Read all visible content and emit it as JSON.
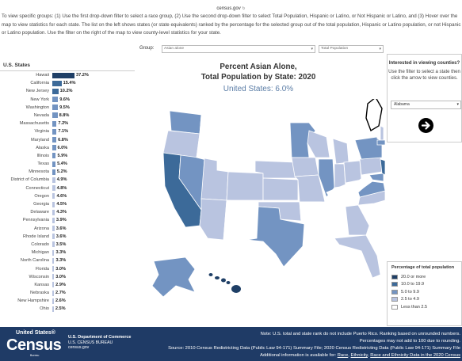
{
  "browser": {
    "url": "census.gov"
  },
  "instructions": "To view specific groups: (1) Use the first drop-down filter to select a race group, (2) Use the second drop-down filter to select Total Population, Hispanic or Latino, or Not Hispanic or Latino, and (3) Hover over the map to view statistics for each state. The list on the left shows states (or state equivalents) ranked by the percentage for the selected group out of the total population, Hispanic or Latino population, or not Hispanic or Latino population. Use the filter on the right of the map to view county-level statistics for your state.",
  "left_panel": {
    "header": "U.S. States",
    "states": [
      {
        "name": "Hawaii",
        "value": 37.2,
        "label": "37.2%"
      },
      {
        "name": "California",
        "value": 15.4,
        "label": "15.4%"
      },
      {
        "name": "New Jersey",
        "value": 10.2,
        "label": "10.2%"
      },
      {
        "name": "New York",
        "value": 9.6,
        "label": "9.6%"
      },
      {
        "name": "Washington",
        "value": 9.5,
        "label": "9.5%"
      },
      {
        "name": "Nevada",
        "value": 8.8,
        "label": "8.8%"
      },
      {
        "name": "Massachusetts",
        "value": 7.2,
        "label": "7.2%"
      },
      {
        "name": "Virginia",
        "value": 7.1,
        "label": "7.1%"
      },
      {
        "name": "Maryland",
        "value": 6.8,
        "label": "6.8%"
      },
      {
        "name": "Alaska",
        "value": 6.0,
        "label": "6.0%"
      },
      {
        "name": "Illinois",
        "value": 5.9,
        "label": "5.9%"
      },
      {
        "name": "Texas",
        "value": 5.4,
        "label": "5.4%"
      },
      {
        "name": "Minnesota",
        "value": 5.2,
        "label": "5.2%"
      },
      {
        "name": "District of Columbia",
        "value": 4.9,
        "label": "4.9%"
      },
      {
        "name": "Connecticut",
        "value": 4.8,
        "label": "4.8%"
      },
      {
        "name": "Oregon",
        "value": 4.6,
        "label": "4.6%"
      },
      {
        "name": "Georgia",
        "value": 4.5,
        "label": "4.5%"
      },
      {
        "name": "Delaware",
        "value": 4.3,
        "label": "4.3%"
      },
      {
        "name": "Pennsylvania",
        "value": 3.9,
        "label": "3.9%"
      },
      {
        "name": "Arizona",
        "value": 3.6,
        "label": "3.6%"
      },
      {
        "name": "Rhode Island",
        "value": 3.6,
        "label": "3.6%"
      },
      {
        "name": "Colorado",
        "value": 3.5,
        "label": "3.5%"
      },
      {
        "name": "Michigan",
        "value": 3.3,
        "label": "3.3%"
      },
      {
        "name": "North Carolina",
        "value": 3.3,
        "label": "3.3%"
      },
      {
        "name": "Florida",
        "value": 3.0,
        "label": "3.0%"
      },
      {
        "name": "Wisconsin",
        "value": 3.0,
        "label": "3.0%"
      },
      {
        "name": "Kansas",
        "value": 2.9,
        "label": "2.9%"
      },
      {
        "name": "Nebraska",
        "value": 2.7,
        "label": "2.7%"
      },
      {
        "name": "New Hampshire",
        "value": 2.6,
        "label": "2.6%"
      },
      {
        "name": "Ohio",
        "value": 2.5,
        "label": "2.5%"
      }
    ]
  },
  "filters": {
    "group_label": "Group:",
    "race": "Asian alone",
    "population": "Total Population",
    "arrow": "▾"
  },
  "map": {
    "title_line1": "Percent Asian Alone,",
    "title_line2": "Total Population by State: 2020",
    "us_value": "United States: 6.0%"
  },
  "county_panel": {
    "title": "Interested in viewing counties?",
    "subtitle": "Use the filter to select a state then click the arrow to view counties.",
    "selected_state": "Alabama"
  },
  "legend": {
    "title": "Percentage of total population",
    "items": [
      {
        "label": "20.0 or more",
        "color": "#1f3f66"
      },
      {
        "label": "10.0 to 19.9",
        "color": "#3c6a99"
      },
      {
        "label": "5.0 to 9.9",
        "color": "#7394c2"
      },
      {
        "label": "2.5 to 4.9",
        "color": "#b9c4e0"
      },
      {
        "label": "Less than 2.5",
        "color": "#ffffff"
      }
    ]
  },
  "footer": {
    "logo_us": "United States®",
    "logo_census": "Census",
    "logo_bureau": "Bureau",
    "dept_line1": "U.S. Department of Commerce",
    "dept_line2": "U.S. CENSUS BUREAU",
    "dept_line3": "census.gov",
    "note1": "Note: U.S. total and state rank do not include Puerto Rico. Ranking based on unrounded numbers.",
    "note2": "Percentages may not add to 100 due to rounding.",
    "note3": "Source: 2010 Census Redistricting Data (Public Law 94-171) Summary File; 2020 Census Redistricting Data (Public Law 94-171) Summary File",
    "note4_prefix": "Additional information is available for:",
    "link1": "Race",
    "link2": "Ethnicity",
    "link3": "Race and Ethnicity Data in the 2020 Census"
  },
  "colors": {
    "bar_top": "#1f3f66",
    "bar_10": "#3c6a99",
    "bar_5": "#7394c2",
    "bar_low": "#b9c4e0",
    "footer_bg": "#1f3b66"
  }
}
